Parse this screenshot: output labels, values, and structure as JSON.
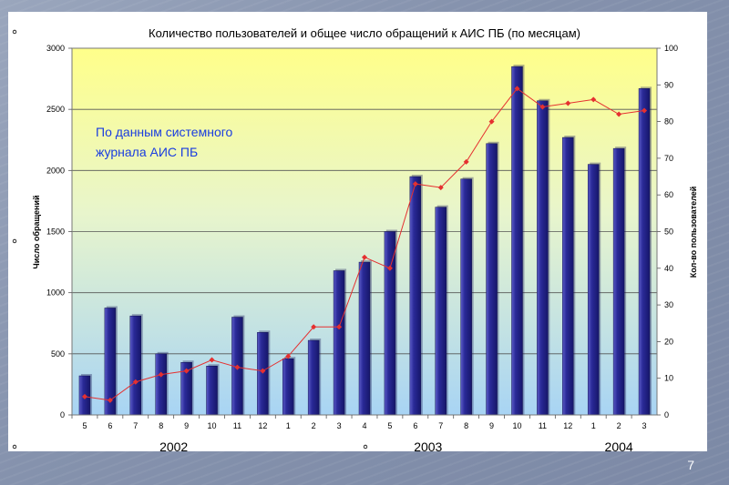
{
  "slide": {
    "page_number": "7"
  },
  "chart_data": {
    "type": "bar",
    "title": "Количество пользователей и общее число обращений к АИС ПБ (по месяцам)",
    "annotation_line1": "По данным системного",
    "annotation_line2": "журнала АИС ПБ",
    "ylabel_left": "Число обращений",
    "ylabel_right": "Кол-во пользователей",
    "categories": [
      "5",
      "6",
      "7",
      "8",
      "9",
      "10",
      "11",
      "12",
      "1",
      "2",
      "3",
      "4",
      "5",
      "6",
      "7",
      "8",
      "9",
      "10",
      "11",
      "12",
      "1",
      "2",
      "3"
    ],
    "years": [
      {
        "label": "2002",
        "from": 0,
        "to": 7
      },
      {
        "label": "2003",
        "from": 8,
        "to": 19
      },
      {
        "label": "2004",
        "from": 20,
        "to": 22
      }
    ],
    "ylim_left": [
      0,
      3000
    ],
    "yticks_left": [
      0,
      500,
      1000,
      1500,
      2000,
      2500,
      3000
    ],
    "ylim_right": [
      0,
      100
    ],
    "yticks_right": [
      0,
      10,
      20,
      30,
      40,
      50,
      60,
      70,
      80,
      90,
      100
    ],
    "grid": true,
    "series": [
      {
        "axis": "left",
        "kind": "bar",
        "color": "#23238c",
        "values": [
          320,
          875,
          810,
          500,
          430,
          400,
          800,
          675,
          460,
          610,
          1180,
          1250,
          1500,
          1950,
          1700,
          1930,
          2220,
          2850,
          2570,
          2270,
          2050,
          2180,
          2670
        ]
      },
      {
        "axis": "right",
        "kind": "line",
        "color": "#e53030",
        "values": [
          5,
          4,
          9,
          11,
          12,
          15,
          13,
          12,
          16,
          24,
          24,
          43,
          40,
          63,
          62,
          69,
          80,
          89,
          84,
          85,
          86,
          82,
          83
        ]
      }
    ]
  }
}
